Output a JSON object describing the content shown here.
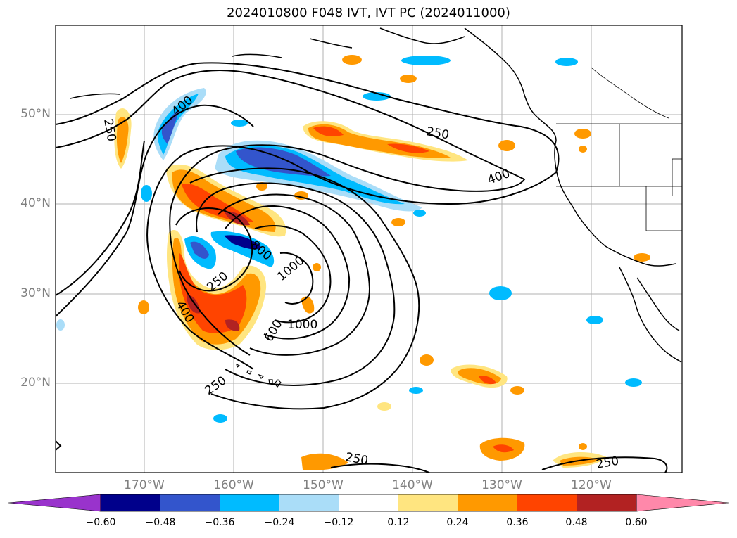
{
  "title": "2024010800 F048 IVT, IVT PC (2024011000)",
  "lat_labels": [
    "50°N",
    "40°N",
    "30°N",
    "20°N"
  ],
  "lon_labels": [
    "170°W",
    "160°W",
    "150°W",
    "140°W",
    "130°W",
    "120°W"
  ],
  "colorbar": {
    "ticks": [
      "−0.60",
      "−0.48",
      "−0.36",
      "−0.24",
      "−0.12",
      "0.12",
      "0.24",
      "0.36",
      "0.48",
      "0.60"
    ],
    "colors": [
      "#9933cc",
      "#00008b",
      "#3355cc",
      "#00bbff",
      "#aaddf8",
      "#ffffff",
      "#ffe580",
      "#ff9900",
      "#ff4400",
      "#b22222",
      "#ff88aa"
    ]
  },
  "contour_labels": [
    "250",
    "400",
    "250",
    "400",
    "600",
    "800",
    "1000",
    "1000",
    "250",
    "400",
    "250",
    "250",
    "250"
  ]
}
